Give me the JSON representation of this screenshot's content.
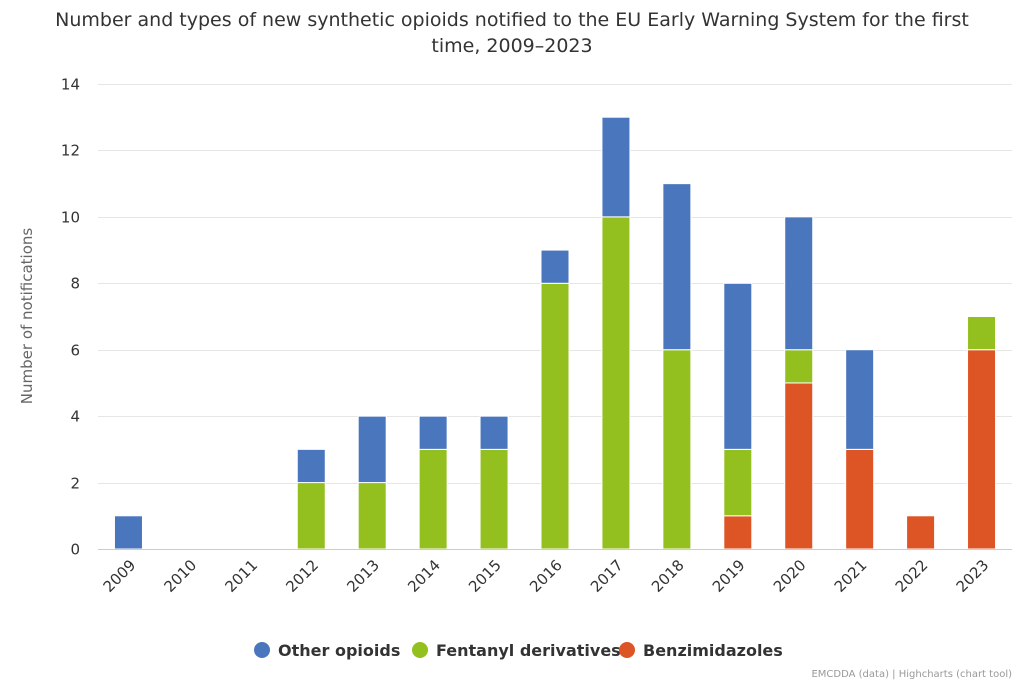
{
  "chart_data": {
    "type": "bar",
    "stacked": true,
    "title": "Number and types of new synthetic opioids notified to the EU Early Warning System for the first time, 2009–2023",
    "title_lines": [
      "Number and types of new synthetic opioids notified to the EU Early Warning System for the first",
      "time, 2009–2023"
    ],
    "xlabel": "",
    "ylabel": "Number of notifications",
    "ylim": [
      0,
      14
    ],
    "yticks": [
      0,
      2,
      4,
      6,
      8,
      10,
      12,
      14
    ],
    "grid": true,
    "legend_position": "bottom",
    "categories": [
      "2009",
      "2010",
      "2011",
      "2012",
      "2013",
      "2014",
      "2015",
      "2016",
      "2017",
      "2018",
      "2019",
      "2020",
      "2021",
      "2022",
      "2023"
    ],
    "series": [
      {
        "name": "Benzimidazoles",
        "color": "#dd5425",
        "values": [
          0,
          0,
          0,
          0,
          0,
          0,
          0,
          0,
          0,
          0,
          1,
          5,
          3,
          1,
          6
        ]
      },
      {
        "name": "Fentanyl derivatives",
        "color": "#93c01f",
        "values": [
          0,
          0,
          0,
          2,
          2,
          3,
          3,
          8,
          10,
          6,
          2,
          1,
          0,
          0,
          1
        ]
      },
      {
        "name": "Other opioids",
        "color": "#4a76bd",
        "values": [
          1,
          0,
          0,
          1,
          2,
          1,
          1,
          1,
          3,
          5,
          5,
          4,
          3,
          0,
          0
        ]
      }
    ],
    "legend_order": [
      "Other opioids",
      "Fentanyl derivatives",
      "Benzimidazoles"
    ],
    "credit": "EMCDDA (data) | Highcharts (chart tool)"
  }
}
